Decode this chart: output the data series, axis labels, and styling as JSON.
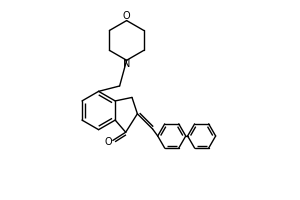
{
  "background_color": "#ffffff",
  "line_color": "#000000",
  "line_width": 1.0,
  "figsize": [
    3.0,
    2.0
  ],
  "dpi": 100,
  "xlim": [
    0,
    10
  ],
  "ylim": [
    -1,
    7.5
  ]
}
